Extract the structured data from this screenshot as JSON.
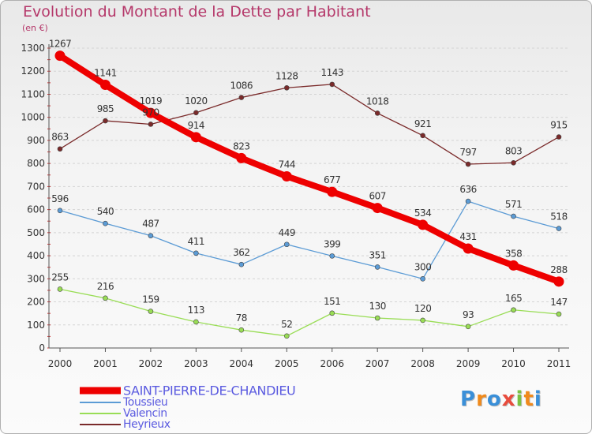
{
  "title": "Evolution du Montant de la Dette par Habitant",
  "subtitle": "(en €)",
  "logo_text": "Proxiti",
  "colors": {
    "title": "#b5386a",
    "legend_text": "#5b5be0",
    "axis": "#555555",
    "grid": "#d4d4d4"
  },
  "chart_data": {
    "type": "line",
    "title": "Evolution du Montant de la Dette par Habitant",
    "ylabel": "(en €)",
    "xlabel": "",
    "x": [
      "2000",
      "2001",
      "2002",
      "2003",
      "2004",
      "2005",
      "2006",
      "2007",
      "2008",
      "2009",
      "2010",
      "2011"
    ],
    "ylim": [
      0,
      1300
    ],
    "yticks": [
      0,
      100,
      200,
      300,
      400,
      500,
      600,
      700,
      800,
      900,
      1000,
      1100,
      1200,
      1300
    ],
    "grid": "horizontal",
    "legend_position": "bottom-left",
    "series": [
      {
        "name": "SAINT-PIERRE-DE-CHANDIEU",
        "color": "#ee0000",
        "emphasis": true,
        "values": [
          1267,
          1141,
          1019,
          914,
          823,
          744,
          677,
          607,
          534,
          431,
          358,
          288
        ]
      },
      {
        "name": "Toussieu",
        "color": "#5b9bd5",
        "values": [
          596,
          540,
          487,
          411,
          362,
          449,
          399,
          351,
          300,
          636,
          571,
          518
        ]
      },
      {
        "name": "Valencin",
        "color": "#99dd55",
        "values": [
          255,
          216,
          159,
          113,
          78,
          52,
          151,
          130,
          120,
          93,
          165,
          147
        ]
      },
      {
        "name": "Heyrieux",
        "color": "#7a2a2a",
        "values": [
          863,
          985,
          970,
          1020,
          1086,
          1128,
          1143,
          1018,
          921,
          797,
          803,
          915
        ]
      }
    ]
  }
}
